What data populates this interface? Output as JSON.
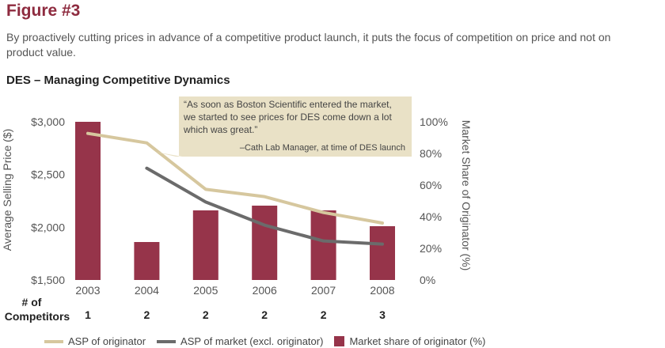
{
  "figure": {
    "title": "Figure #3",
    "caption": "By proactively cutting prices in advance of a competitive product launch, it puts the focus of competition on price and not on product value."
  },
  "colors": {
    "bar": "#96344a",
    "asp_originator": "#d6c79e",
    "asp_market": "#6b6b6b",
    "callout_bg": "#e9e1c6",
    "title": "#8e2b3f"
  },
  "callout": {
    "quote_lines": [
      "“As soon as Boston Scientific entered the market,",
      "we started to see prices for DES come down a lot",
      "which was great.”"
    ],
    "attribution": "–Cath Lab Manager, at time of DES launch"
  },
  "competitors": {
    "label_lines": [
      "# of",
      "Competitors"
    ],
    "values": [
      "1",
      "2",
      "2",
      "2",
      "2",
      "3"
    ]
  },
  "chart_data": {
    "type": "bar",
    "title": "DES – Managing Competitive Dynamics",
    "categories": [
      "2003",
      "2004",
      "2005",
      "2006",
      "2007",
      "2008"
    ],
    "ylabel": "Average Selling Price ($)",
    "ylim": [
      1500,
      3000
    ],
    "yticks": [
      "$3,000",
      "$2,500",
      "$2,000",
      "$1,500"
    ],
    "y2label": "Market Share of Originator (%)",
    "y2lim": [
      0,
      100
    ],
    "y2ticks": [
      "100%",
      "80%",
      "60%",
      "40%",
      "20%",
      "0%"
    ],
    "grid": false,
    "legend_position": "bottom",
    "series": [
      {
        "name": "Market share of originator (%)",
        "type": "bar",
        "axis": "right",
        "values": [
          100,
          24,
          44,
          47,
          44,
          34
        ]
      },
      {
        "name": "ASP of originator",
        "type": "line",
        "axis": "left",
        "values": [
          2890,
          2800,
          2360,
          2290,
          2140,
          2040
        ]
      },
      {
        "name": "ASP of market (excl. originator)",
        "type": "line",
        "axis": "left",
        "values": [
          null,
          2560,
          2240,
          2020,
          1870,
          1840
        ]
      }
    ]
  }
}
